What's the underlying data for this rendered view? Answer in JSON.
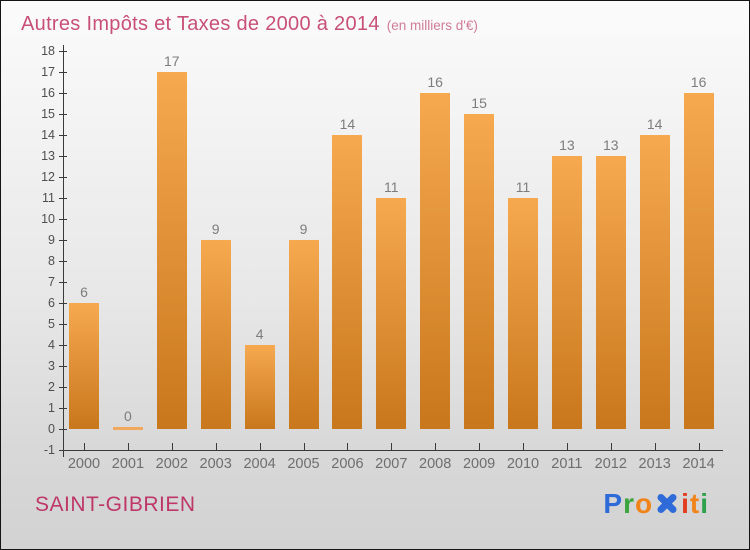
{
  "header": {
    "title": "Autres Impôts et Taxes de 2000 à 2014",
    "subtitle": "(en milliers d'€)"
  },
  "chart_data": {
    "type": "bar",
    "title": "Autres Impôts et Taxes de 2000 à 2014",
    "unit_note": "en milliers d'€",
    "categories": [
      "2000",
      "2001",
      "2002",
      "2003",
      "2004",
      "2005",
      "2006",
      "2007",
      "2008",
      "2009",
      "2010",
      "2011",
      "2012",
      "2013",
      "2014"
    ],
    "values": [
      6,
      0,
      17,
      9,
      4,
      9,
      14,
      11,
      16,
      15,
      11,
      13,
      13,
      14,
      16
    ],
    "ylim": [
      -1,
      18
    ],
    "ytick_step": 1,
    "grid": false,
    "bar_labels_shown": true
  },
  "colors": {
    "title": "#c85078",
    "subtitle": "#d07c98",
    "location": "#be3768",
    "axis": "#3a3a3a",
    "ytick_label": "#4f4f4f",
    "year_label": "#6e6e6e",
    "value_label": "#7d7d7d",
    "bar_top": "#f6a94f",
    "bar_bottom": "#c9771c",
    "zero_bar": "#f2a85c"
  },
  "footer": {
    "location": "SAINT-GIBRIEN",
    "logo_letters": [
      {
        "char": "P",
        "color": "#2e6bd8",
        "style": "letter"
      },
      {
        "char": "r",
        "color": "#3ba43b",
        "style": "letter"
      },
      {
        "char": "o",
        "color": "#f08419",
        "style": "letter"
      },
      {
        "char": "x",
        "color": "#2e6bd8",
        "style": "x-mark"
      },
      {
        "char": "i",
        "color": "#e23b1e",
        "style": "letter"
      },
      {
        "char": "t",
        "color": "#f08419",
        "style": "letter"
      },
      {
        "char": "i",
        "color": "#2fa14c",
        "style": "letter"
      }
    ]
  }
}
